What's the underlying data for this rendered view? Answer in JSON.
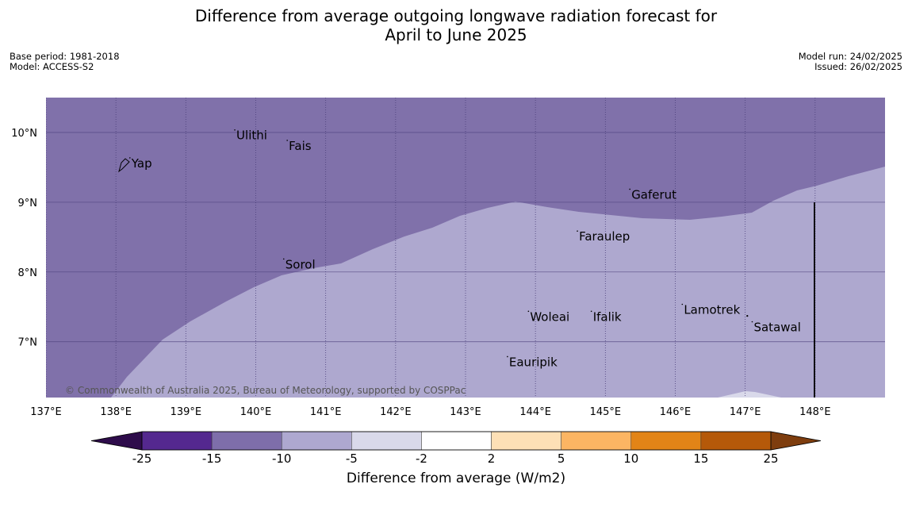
{
  "title_line1": "Difference from average outgoing longwave radiation forecast for",
  "title_line2": "April to June 2025",
  "meta": {
    "base_period": "Base period: 1981-2018",
    "model": "Model: ACCESS-S2",
    "model_run": "Model run: 24/02/2025",
    "issued": "Issued: 26/02/2025"
  },
  "map": {
    "lon_range": [
      137.0,
      149.0
    ],
    "lat_range": [
      6.2,
      10.5
    ],
    "lon_ticks": [
      "137°E",
      "138°E",
      "139°E",
      "140°E",
      "141°E",
      "142°E",
      "143°E",
      "144°E",
      "145°E",
      "146°E",
      "147°E",
      "148°E"
    ],
    "lon_tick_values": [
      137,
      138,
      139,
      140,
      141,
      142,
      143,
      144,
      145,
      146,
      147,
      148
    ],
    "lat_ticks": [
      "10°N",
      "9°N",
      "8°N",
      "7°N"
    ],
    "lat_tick_values": [
      10,
      9,
      8,
      7
    ],
    "places": [
      {
        "name": "Yap",
        "lon": 138.2,
        "lat": 9.5
      },
      {
        "name": "Ulithi",
        "lon": 139.7,
        "lat": 9.9
      },
      {
        "name": "Fais",
        "lon": 140.45,
        "lat": 9.75
      },
      {
        "name": "Gaferut",
        "lon": 145.35,
        "lat": 9.05
      },
      {
        "name": "Faraulep",
        "lon": 144.6,
        "lat": 8.45
      },
      {
        "name": "Sorol",
        "lon": 140.4,
        "lat": 8.05
      },
      {
        "name": "Woleai",
        "lon": 143.9,
        "lat": 7.3
      },
      {
        "name": "Ifalik",
        "lon": 144.8,
        "lat": 7.3
      },
      {
        "name": "Lamotrek",
        "lon": 146.1,
        "lat": 7.4
      },
      {
        "name": "Satawal",
        "lon": 147.1,
        "lat": 7.15
      },
      {
        "name": "Eauripik",
        "lon": 143.6,
        "lat": 6.65
      }
    ],
    "copyright": "© Commonwealth of Australia 2025, Bureau of Meteorology, supported by COSPPac",
    "colors": {
      "lt_minus15": "#8071aa",
      "minus15_to_minus10": "#aea8cf",
      "minus10_to_minus5": "#d9d9ea"
    }
  },
  "colorbar": {
    "label": "Difference from average (W/m2)",
    "ticks": [
      "-25",
      "-15",
      "-10",
      "-5",
      "-2",
      "2",
      "5",
      "10",
      "15",
      "25"
    ],
    "colors": [
      "#54288f",
      "#7e6eaa",
      "#aea8d0",
      "#d9d9ea",
      "#ffffff",
      "#fde0b6",
      "#fcb563",
      "#e28417",
      "#b55909"
    ],
    "under_color": "#2e0c4b",
    "over_color": "#7e3d0e"
  }
}
